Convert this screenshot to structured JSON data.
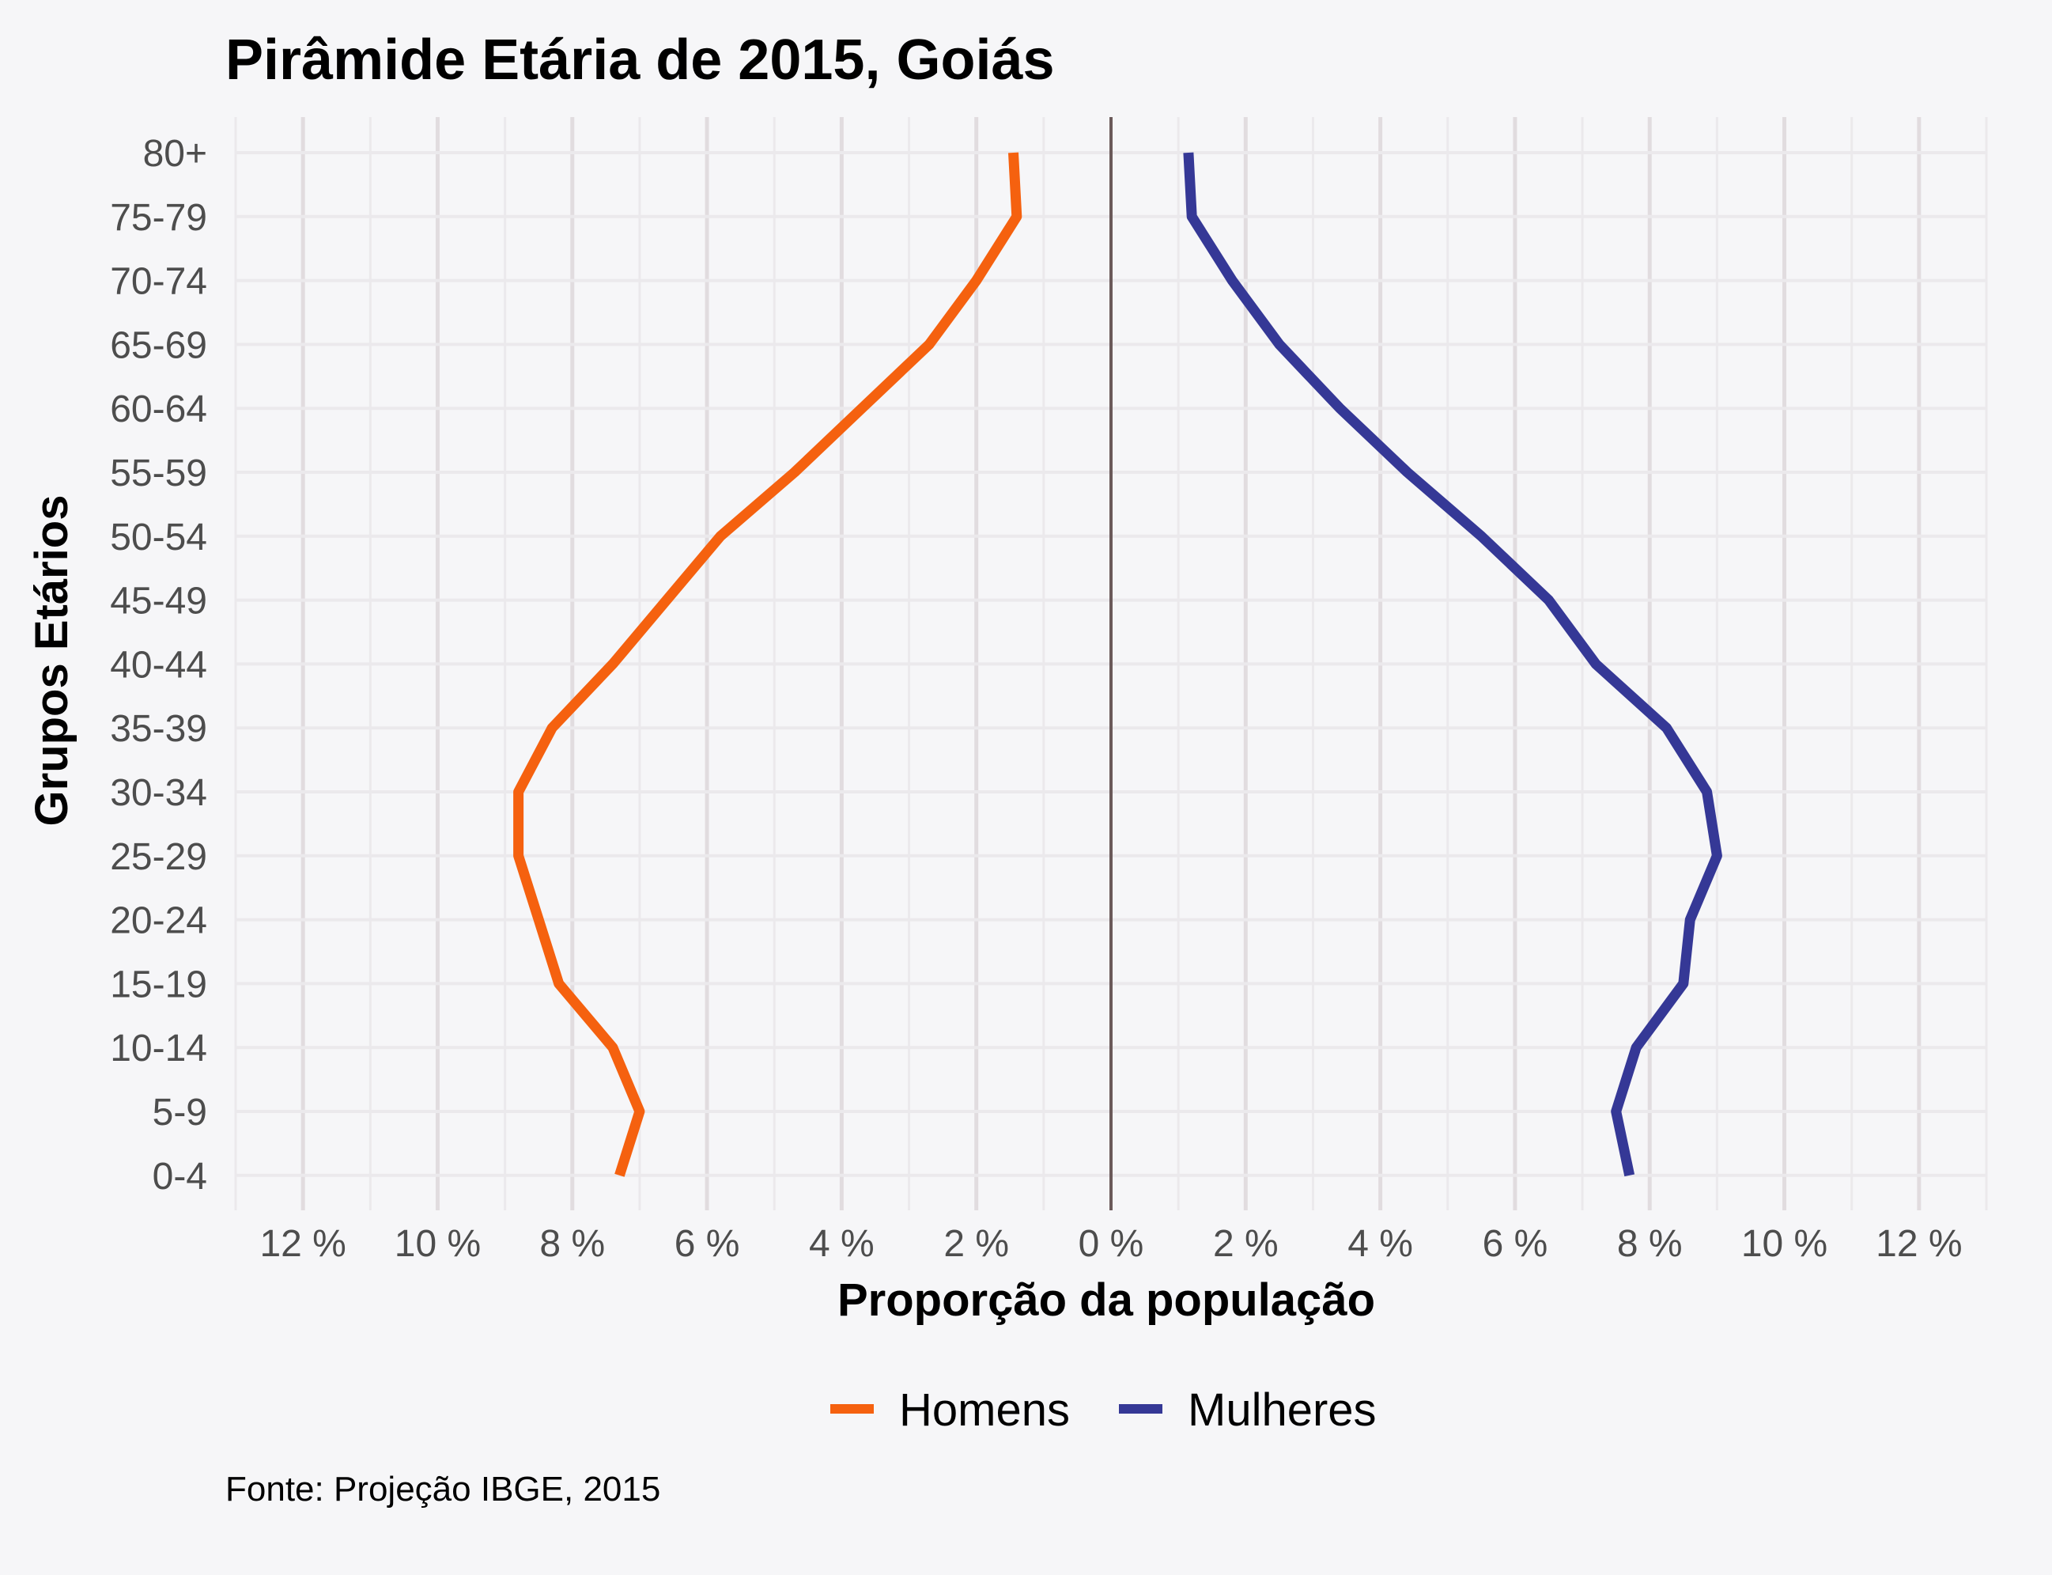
{
  "chart_data": {
    "type": "line",
    "title": "Pirâmide Etária de 2015, Goiás",
    "xlabel": "Proporção da população",
    "ylabel": "Grupos Etários",
    "caption": "Fonte: Projeção IBGE, 2015",
    "categories": [
      "0-4",
      "5-9",
      "10-14",
      "15-19",
      "20-24",
      "25-29",
      "30-34",
      "35-39",
      "40-44",
      "45-49",
      "50-54",
      "55-59",
      "60-64",
      "65-69",
      "70-74",
      "75-79",
      "80+"
    ],
    "x_ticks": [
      -12,
      -10,
      -8,
      -6,
      -4,
      -2,
      0,
      2,
      4,
      6,
      8,
      10,
      12
    ],
    "x_tick_labels": [
      "12 %",
      "10 %",
      "8 %",
      "6 %",
      "4 %",
      "2 %",
      "0 %",
      "2 %",
      "4 %",
      "6 %",
      "8 %",
      "10 %",
      "12 %"
    ],
    "xlim": [
      -13,
      13
    ],
    "grid": true,
    "legend_position": "bottom",
    "series": [
      {
        "name": "Homens",
        "color": "#f5610f",
        "side": "left",
        "values": [
          7.3,
          7.0,
          7.4,
          8.2,
          8.5,
          8.8,
          8.8,
          8.3,
          7.4,
          6.6,
          5.8,
          4.7,
          3.7,
          2.7,
          2.0,
          1.4,
          1.45
        ]
      },
      {
        "name": "Mulheres",
        "color": "#353896",
        "side": "right",
        "values": [
          7.7,
          7.5,
          7.8,
          8.5,
          8.6,
          9.0,
          8.85,
          8.25,
          7.2,
          6.5,
          5.5,
          4.4,
          3.4,
          2.5,
          1.8,
          1.2,
          1.15
        ]
      }
    ]
  }
}
